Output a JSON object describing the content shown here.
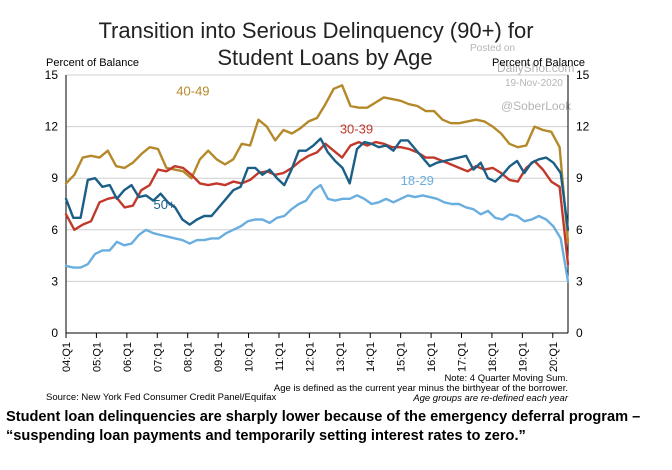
{
  "chart_data": {
    "type": "line",
    "title": [
      "Transition into Serious Delinquency (90+) for",
      "Student Loans by Age"
    ],
    "ylabel_left": "Percent of Balance",
    "ylabel_right": "Percent of Balance",
    "ylim": [
      0,
      15
    ],
    "yticks": [
      0,
      3,
      6,
      9,
      12,
      15
    ],
    "x_tick_labels": [
      "04:Q1",
      "05:Q1",
      "06:Q1",
      "07:Q1",
      "08:Q1",
      "09:Q1",
      "10:Q1",
      "11:Q1",
      "12:Q1",
      "13:Q1",
      "14:Q1",
      "15:Q1",
      "16:Q1",
      "17:Q1",
      "18:Q1",
      "19:Q1",
      "20:Q1"
    ],
    "x_start": "04:Q1",
    "grid": true,
    "series": [
      {
        "name": "40-49",
        "color": "#b5892a",
        "values": [
          8.7,
          9.2,
          10.2,
          10.3,
          10.2,
          10.6,
          9.7,
          9.6,
          9.9,
          10.4,
          10.8,
          10.7,
          9.6,
          9.5,
          9.4,
          9.0,
          10.1,
          10.6,
          10.1,
          9.8,
          10.1,
          11.0,
          10.9,
          12.4,
          12.0,
          11.2,
          11.8,
          11.6,
          11.9,
          12.3,
          12.5,
          13.3,
          14.2,
          14.4,
          13.2,
          13.1,
          13.1,
          13.4,
          13.7,
          13.6,
          13.5,
          13.3,
          13.2,
          12.9,
          12.9,
          12.4,
          12.2,
          12.2,
          12.3,
          12.4,
          12.3,
          12.0,
          11.6,
          11.0,
          10.8,
          10.9,
          12.0,
          11.8,
          11.7,
          10.8,
          5.3
        ]
      },
      {
        "name": "30-39",
        "color": "#c0392b",
        "values": [
          6.9,
          6.0,
          6.3,
          6.5,
          7.6,
          7.8,
          7.9,
          7.3,
          7.4,
          8.3,
          8.6,
          9.5,
          9.4,
          9.7,
          9.6,
          9.2,
          8.7,
          8.6,
          8.7,
          8.6,
          8.8,
          8.7,
          8.9,
          9.3,
          9.4,
          9.2,
          9.3,
          9.6,
          10.0,
          10.3,
          10.5,
          11.0,
          10.6,
          10.2,
          10.9,
          11.1,
          10.9,
          11.1,
          11.0,
          10.8,
          10.8,
          10.7,
          10.5,
          10.2,
          10.2,
          10.0,
          9.8,
          9.6,
          9.4,
          9.7,
          9.5,
          9.6,
          9.3,
          8.9,
          8.8,
          9.6,
          10.0,
          9.5,
          8.8,
          8.5,
          4.0
        ]
      },
      {
        "name": "50+",
        "color": "#1c5f86",
        "values": [
          7.8,
          6.7,
          6.7,
          8.9,
          9.0,
          8.5,
          8.6,
          7.8,
          8.3,
          8.6,
          7.9,
          8.0,
          7.7,
          8.1,
          7.6,
          7.3,
          6.6,
          6.3,
          6.6,
          6.8,
          6.8,
          7.3,
          7.8,
          8.3,
          8.5,
          9.6,
          9.6,
          9.2,
          9.5,
          9.0,
          8.6,
          9.5,
          10.6,
          10.6,
          10.9,
          11.3,
          10.5,
          10.0,
          9.6,
          8.7,
          10.7,
          11.1,
          11.0,
          10.8,
          10.9,
          10.6,
          11.2,
          11.2,
          10.7,
          10.2,
          9.7,
          9.9,
          10.0,
          10.1,
          10.2,
          10.3,
          9.5,
          9.9,
          9.0,
          8.8,
          9.2,
          9.7,
          10.0,
          9.3,
          9.9,
          10.1,
          10.2,
          9.9,
          9.3,
          6.0
        ]
      },
      {
        "name": "18-29",
        "color": "#6aaee0",
        "values": [
          3.9,
          3.8,
          3.8,
          4.0,
          4.6,
          4.8,
          4.8,
          5.3,
          5.1,
          5.2,
          5.7,
          6.0,
          5.8,
          5.7,
          5.6,
          5.5,
          5.4,
          5.2,
          5.4,
          5.4,
          5.5,
          5.5,
          5.8,
          6.0,
          6.2,
          6.5,
          6.6,
          6.6,
          6.4,
          6.7,
          6.8,
          7.2,
          7.5,
          7.7,
          8.3,
          8.6,
          7.8,
          7.7,
          7.8,
          7.8,
          8.0,
          7.8,
          7.5,
          7.6,
          7.8,
          7.6,
          7.8,
          8.0,
          7.9,
          8.0,
          7.9,
          7.8,
          7.6,
          7.5,
          7.5,
          7.3,
          7.2,
          6.9,
          7.1,
          6.7,
          6.6,
          6.9,
          6.8,
          6.5,
          6.6,
          6.8,
          6.6,
          6.2,
          5.5,
          3.0
        ]
      }
    ],
    "source": "Source: New York Fed Consumer Credit Panel/Equifax",
    "notes": [
      "Note: 4 Quarter Moving Sum.",
      "Age is defined as the current year minus the birthyear of the borrower.",
      "Age groups are re-defined each year"
    ]
  },
  "watermark": {
    "posted": "Posted on",
    "site": "DailyShot.com",
    "date": "19-Nov-2020",
    "handle": "@SoberLook"
  },
  "caption": "Student loan delinquencies are sharply lower because of the emergency deferral program – “suspending loan payments and temporarily setting interest rates to zero.”"
}
